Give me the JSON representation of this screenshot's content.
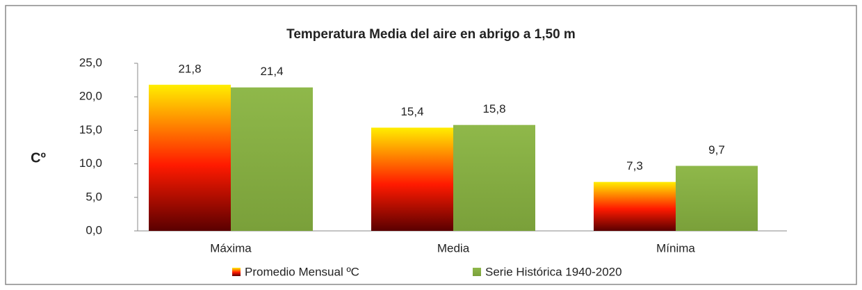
{
  "chart_data": {
    "type": "bar",
    "title": "Temperatura  Media del aire en abrigo a 1,50 m",
    "y_label": "Cº",
    "categories": [
      "Máxima",
      "Media",
      "Mínima"
    ],
    "series": [
      {
        "name": "Promedio Mensual ºC",
        "color": "#ff1a00",
        "values": [
          21.8,
          15.4,
          7.3
        ],
        "value_labels": [
          "21,8",
          "15,4",
          "7,3"
        ]
      },
      {
        "name": "Serie Histórica 1940-2020",
        "color": "#8fb84a",
        "values": [
          21.4,
          15.8,
          9.7
        ],
        "value_labels": [
          "21,4",
          "15,8",
          "9,7"
        ]
      }
    ],
    "ylim": [
      0,
      25
    ],
    "yticks": [
      {
        "value": 0,
        "label": "0,0"
      },
      {
        "value": 5,
        "label": "5,0"
      },
      {
        "value": 10,
        "label": "10,0"
      },
      {
        "value": 15,
        "label": "15,0"
      },
      {
        "value": 20,
        "label": "20,0"
      },
      {
        "value": 25,
        "label": "25,0"
      }
    ],
    "legend": "bottom"
  }
}
